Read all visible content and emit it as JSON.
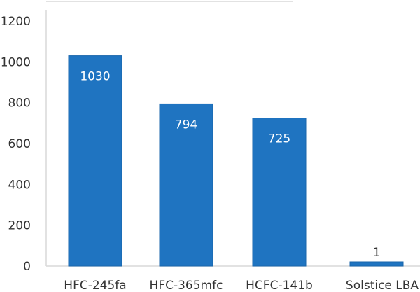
{
  "chart_data": {
    "type": "bar",
    "categories": [
      "HFC-245fa",
      "HFC-365mfc",
      "HCFC-141b",
      "Solstice LBA"
    ],
    "values": [
      1030,
      794,
      725,
      1
    ],
    "data_labels": [
      "1030",
      "794",
      "725",
      "1"
    ],
    "title": "",
    "xlabel": "",
    "ylabel": "",
    "ylim": [
      0,
      1200
    ],
    "yticks": [
      "0",
      "200",
      "400",
      "600",
      "800",
      "1000",
      "1200"
    ],
    "grid": false,
    "legend": "none",
    "colors": {
      "bar": "#1f74c1",
      "bar_edge": "#1a66ab",
      "axis": "#d9d9d9",
      "label_inside": "#ffffff",
      "label_outside": "#333333"
    }
  }
}
